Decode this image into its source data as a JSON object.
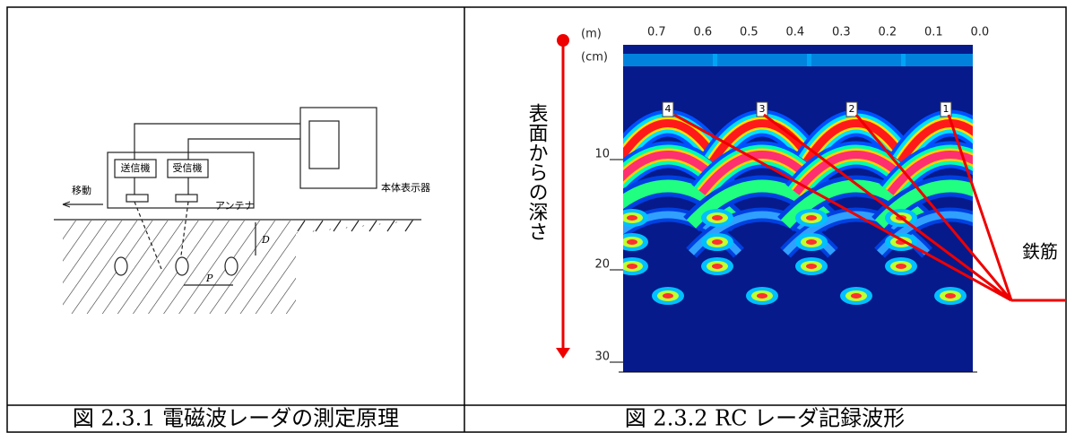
{
  "figures": [
    {
      "caption": "図 2.3.1 電磁波レーダの測定原理",
      "labels": {
        "transmitter": "送信機",
        "receiver": "受信機",
        "display": "本体表示器",
        "movement": "移動",
        "antenna": "アンテナ",
        "depth": "D",
        "pitch": "P"
      }
    },
    {
      "caption": "図 2.3.2 RC レーダ記録波形",
      "x_unit": "(m)",
      "y_unit": "(cm)",
      "x_ticks": [
        "0.7",
        "0.6",
        "0.5",
        "0.4",
        "0.3",
        "0.2",
        "0.1",
        "0.0"
      ],
      "y_ticks": [
        "10",
        "20",
        "30"
      ],
      "markers": [
        "4",
        "3",
        "2",
        "1"
      ],
      "depth_label": "表面からの深さ",
      "rebar_label": "鉄筋"
    }
  ]
}
